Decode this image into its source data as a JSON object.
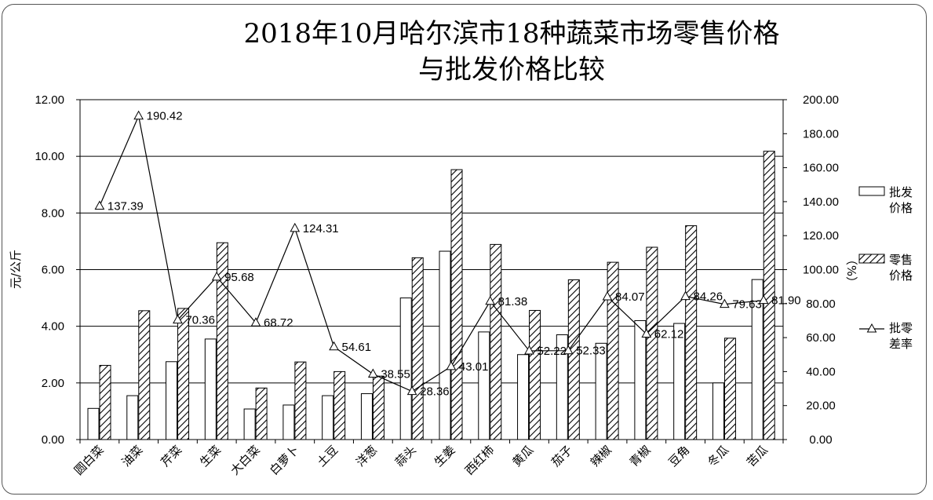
{
  "chart_data": {
    "type": "bar",
    "title_line1": "2018年10月哈尔滨市18种蔬菜市场零售价格",
    "title_line2": "与批发价格比较",
    "ylabel": "元/公斤",
    "ylabel_right": "（%）",
    "ylim": [
      0,
      12
    ],
    "ylim_right": [
      0,
      200
    ],
    "yticks": [
      "0.00",
      "2.00",
      "4.00",
      "6.00",
      "8.00",
      "10.00",
      "12.00"
    ],
    "yticks_right": [
      "0.00",
      "20.00",
      "40.00",
      "60.00",
      "80.00",
      "100.00",
      "120.00",
      "140.00",
      "160.00",
      "180.00",
      "200.00"
    ],
    "grid": true,
    "legend_position": "right",
    "categories": [
      "圆白菜",
      "油菜",
      "芹菜",
      "生菜",
      "大白菜",
      "白萝卜",
      "土豆",
      "洋葱",
      "蒜头",
      "生姜",
      "西红柿",
      "黄瓜",
      "茄子",
      "辣椒",
      "青椒",
      "豆角",
      "冬瓜",
      "苦瓜"
    ],
    "series": [
      {
        "name": "批发价格",
        "axis": "left",
        "values": [
          1.1,
          1.55,
          2.75,
          3.55,
          1.08,
          1.22,
          1.55,
          1.62,
          5.0,
          6.65,
          3.8,
          3.0,
          3.7,
          3.4,
          4.2,
          4.1,
          2.0,
          5.65
        ]
      },
      {
        "name": "零售价格",
        "axis": "left",
        "values": [
          2.62,
          4.55,
          4.63,
          6.95,
          1.82,
          2.74,
          2.4,
          2.24,
          6.42,
          9.53,
          6.89,
          4.56,
          5.64,
          6.26,
          6.79,
          7.55,
          3.58,
          10.18
        ]
      },
      {
        "name": "批零差率",
        "axis": "right",
        "type": "line",
        "values": [
          137.39,
          190.42,
          70.36,
          95.68,
          68.72,
          124.31,
          54.61,
          38.55,
          28.36,
          43.01,
          81.38,
          52.22,
          52.33,
          84.07,
          62.12,
          84.26,
          79.63,
          81.9
        ],
        "labels": [
          "137.39",
          "190.42",
          "70.36",
          "95.68",
          "68.72",
          "124.31",
          "54.61",
          "38.55",
          "28.36",
          "43.01",
          "81.38",
          "52.22",
          "52.33",
          "84.07",
          "62.12",
          "84.26",
          "79.63",
          "81.90"
        ]
      }
    ],
    "legend": [
      {
        "line1": "批发",
        "line2": "价格"
      },
      {
        "line1": "零售",
        "line2": "价格"
      },
      {
        "line1": "批零",
        "line2": "差率"
      }
    ]
  }
}
